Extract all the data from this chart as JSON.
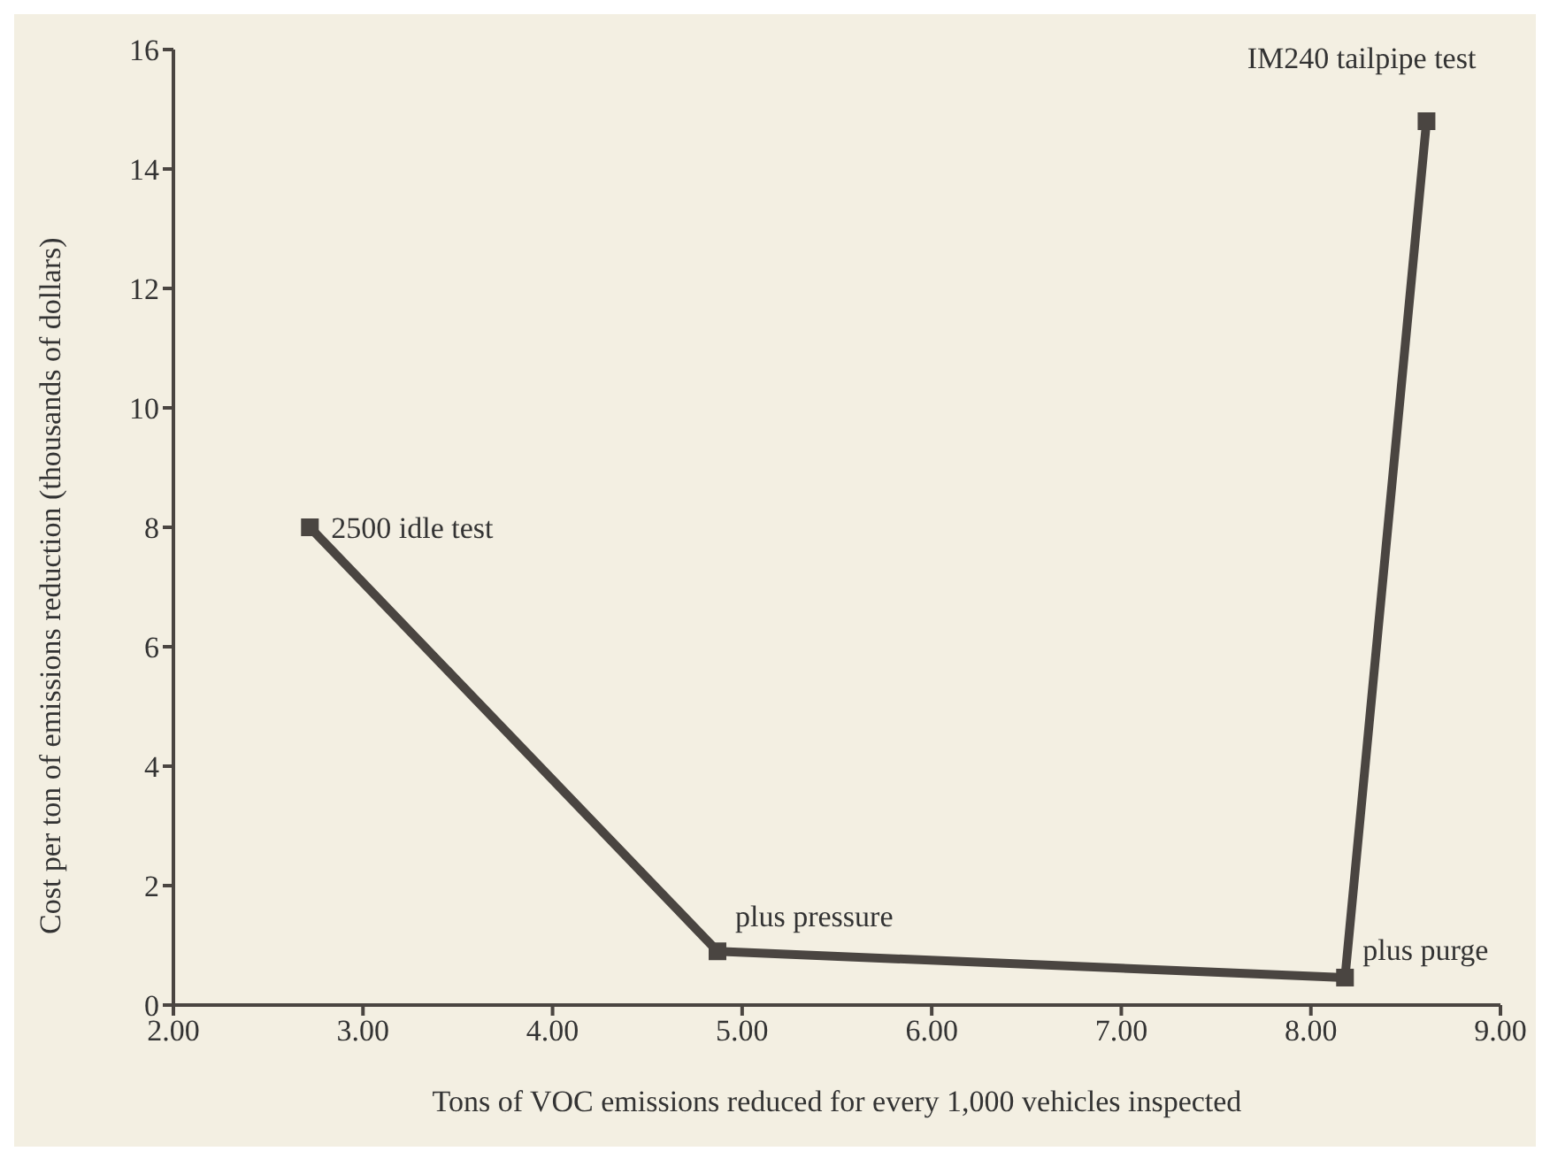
{
  "chart_data": {
    "type": "line",
    "xlabel": "Tons of VOC emissions reduced for every 1,000 vehicles inspected",
    "ylabel": "Cost per ton of emissions reduction (thousands of dollars)",
    "series": [
      {
        "color": "#4a4541",
        "x": [
          2.72,
          4.87,
          8.18,
          8.61
        ],
        "values": [
          8.0,
          0.9,
          0.46,
          14.8
        ]
      }
    ],
    "xlim": [
      2,
      9
    ],
    "xticks": [
      {
        "value": 2,
        "label": "2.00"
      },
      {
        "value": 3,
        "label": "3.00"
      },
      {
        "value": 4,
        "label": "4.00"
      },
      {
        "value": 5,
        "label": "5.00"
      },
      {
        "value": 6,
        "label": "6.00"
      },
      {
        "value": 7,
        "label": "7.00"
      },
      {
        "value": 8,
        "label": "8.00"
      },
      {
        "value": 9,
        "label": "9.00"
      }
    ],
    "ylim": [
      0,
      16
    ],
    "yticks": [
      0,
      2,
      4,
      6,
      8,
      10,
      12,
      14,
      16
    ],
    "grid": false,
    "legend": false,
    "marker": "square",
    "line_style": "solid",
    "annotations": [
      {
        "text": "2500 idle test",
        "x": 2.72,
        "y": 8.0
      },
      {
        "text": "plus pressure",
        "x": 4.87,
        "y": 0.9
      },
      {
        "text": "plus purge",
        "x": 8.18,
        "y": 0.46
      },
      {
        "text": "IM240 tailpipe test",
        "x": 8.61,
        "y": 14.8
      }
    ]
  }
}
